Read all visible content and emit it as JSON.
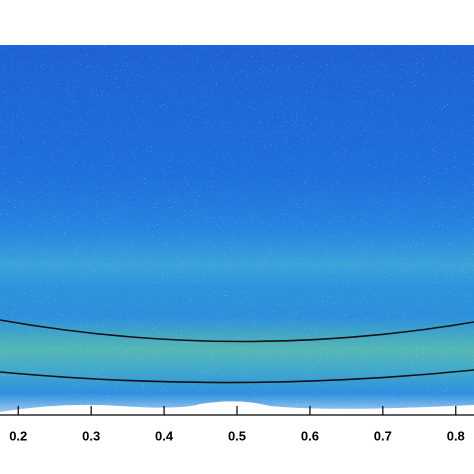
{
  "chart_data": {
    "type": "heatmap",
    "xlim": [
      0.175,
      0.825
    ],
    "xticks": [
      0.2,
      0.3,
      0.4,
      0.5,
      0.6,
      0.7,
      0.8
    ]
  }
}
